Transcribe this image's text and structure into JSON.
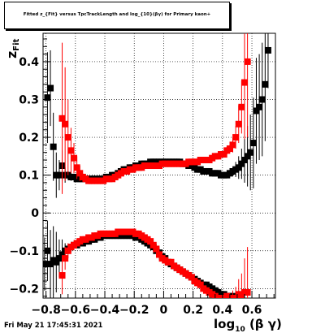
{
  "title": "Fitted z_{Fit} versus TpcTrackLength and log_{10}(βγ) for Primary kaon+",
  "footer": "Fri May 21 17:45:31 2021",
  "chart_data": {
    "type": "scatter",
    "title": "Fitted z_{Fit} versus TpcTrackLength and log_{10}(βγ) for Primary kaon+",
    "xlabel": "log10(βγ)",
    "ylabel": "z_Fit",
    "xlim": [
      -0.82,
      0.76
    ],
    "ylim": [
      -0.225,
      0.475
    ],
    "x_ticks": [
      -0.8,
      -0.6,
      -0.4,
      -0.2,
      0,
      0.2,
      0.4,
      0.6
    ],
    "y_ticks": [
      -0.2,
      -0.1,
      0,
      0.1,
      0.2,
      0.3,
      0.4
    ],
    "x_tick_labels": [
      "−0.8",
      "−0.6",
      "−0.4",
      "−0.2",
      "0",
      "0.2",
      "0.4",
      "0.6"
    ],
    "y_tick_labels": [
      "−0.2",
      "−0.1",
      "0",
      "0.1",
      "0.2",
      "0.3",
      "0.4"
    ],
    "grid": true,
    "series": [
      {
        "color": "#000000",
        "x": [
          -0.81,
          -0.79,
          -0.77,
          -0.75,
          -0.73,
          -0.71,
          -0.69,
          -0.67,
          -0.65,
          -0.63,
          -0.61,
          -0.59,
          -0.57,
          -0.55,
          -0.53,
          -0.51,
          -0.49,
          -0.47,
          -0.45,
          -0.43,
          -0.41,
          -0.39,
          -0.37,
          -0.35,
          -0.33,
          -0.31,
          -0.29,
          -0.27,
          -0.25,
          -0.23,
          -0.21,
          -0.19,
          -0.17,
          -0.15,
          -0.13,
          -0.11,
          -0.09,
          -0.07,
          -0.05,
          -0.03,
          -0.01,
          0.01,
          0.03,
          0.05,
          0.07,
          0.09,
          0.11,
          0.13,
          0.15,
          0.17,
          0.19,
          0.21,
          0.23,
          0.25,
          0.27,
          0.29,
          0.31,
          0.33,
          0.35,
          0.37,
          0.39,
          0.41,
          0.43,
          0.45,
          0.47,
          0.49,
          0.51,
          0.53,
          0.55,
          0.57,
          0.59,
          0.61,
          0.63,
          0.65,
          0.67,
          0.69,
          0.71,
          0.73
        ],
        "y": [
          null,
          0.305,
          0.33,
          0.175,
          0.1,
          0.1,
          0.125,
          0.1,
          0.1,
          0.095,
          0.095,
          0.09,
          0.09,
          0.09,
          0.09,
          0.09,
          0.09,
          0.09,
          0.09,
          0.09,
          0.09,
          0.095,
          0.095,
          0.1,
          0.1,
          0.105,
          0.11,
          0.115,
          0.115,
          0.12,
          0.12,
          0.125,
          0.125,
          0.13,
          0.13,
          0.13,
          0.135,
          0.135,
          0.135,
          0.135,
          0.135,
          0.135,
          0.135,
          0.135,
          0.135,
          0.135,
          0.135,
          0.13,
          0.13,
          0.125,
          0.125,
          0.12,
          0.115,
          0.115,
          0.11,
          0.11,
          0.11,
          0.105,
          0.105,
          0.105,
          0.1,
          0.1,
          0.1,
          0.105,
          0.11,
          0.115,
          0.12,
          0.13,
          0.14,
          0.15,
          0.16,
          0.185,
          0.27,
          0.28,
          0.3,
          0.34,
          0.43,
          null
        ],
        "yerr": [
          0,
          0.12,
          0.1,
          0.09,
          0.06,
          0.04,
          0.04,
          0.02,
          0.01,
          0.01,
          0.005,
          0.005,
          0.005,
          0.005,
          0.005,
          0.005,
          0.005,
          0.005,
          0.005,
          0.005,
          0.005,
          0.005,
          0.005,
          0.005,
          0.005,
          0.005,
          0.005,
          0.005,
          0.005,
          0.005,
          0.005,
          0.005,
          0.005,
          0.005,
          0.005,
          0.005,
          0.005,
          0.005,
          0.005,
          0.005,
          0.005,
          0.005,
          0.005,
          0.005,
          0.005,
          0.005,
          0.005,
          0.005,
          0.005,
          0.005,
          0.005,
          0.005,
          0.005,
          0.005,
          0.005,
          0.005,
          0.005,
          0.005,
          0.005,
          0.005,
          0.005,
          0.005,
          0.005,
          0.005,
          0.01,
          0.02,
          0.03,
          0.04,
          0.06,
          0.08,
          0.1,
          0.12,
          0.14,
          0.14,
          0.15,
          0.15,
          0.1,
          0
        ]
      },
      {
        "color": "#ff0000",
        "x": [
          -0.69,
          -0.67,
          -0.65,
          -0.63,
          -0.61,
          -0.59,
          -0.57,
          -0.55,
          -0.53,
          -0.51,
          -0.49,
          -0.47,
          -0.45,
          -0.43,
          -0.41,
          -0.39,
          -0.37,
          -0.35,
          -0.33,
          -0.31,
          -0.29,
          -0.27,
          -0.25,
          -0.23,
          -0.21,
          -0.19,
          -0.17,
          -0.15,
          -0.13,
          -0.11,
          -0.09,
          -0.07,
          -0.05,
          -0.03,
          -0.01,
          0.01,
          0.03,
          0.05,
          0.07,
          0.09,
          0.11,
          0.13,
          0.15,
          0.17,
          0.19,
          0.21,
          0.23,
          0.25,
          0.27,
          0.29,
          0.31,
          0.33,
          0.35,
          0.37,
          0.39,
          0.41,
          0.43,
          0.45,
          0.47,
          0.49,
          0.51,
          0.53,
          0.55,
          0.57
        ],
        "y": [
          0.25,
          0.235,
          0.2,
          0.165,
          0.145,
          0.12,
          0.105,
          0.095,
          0.09,
          0.085,
          0.085,
          0.085,
          0.085,
          0.085,
          0.085,
          0.09,
          0.09,
          0.09,
          0.095,
          0.1,
          0.105,
          0.11,
          0.11,
          0.115,
          0.115,
          0.12,
          0.12,
          0.12,
          0.125,
          0.125,
          0.125,
          0.125,
          0.125,
          0.125,
          0.13,
          0.13,
          0.13,
          0.13,
          0.13,
          0.13,
          0.13,
          0.13,
          0.13,
          0.135,
          0.135,
          0.135,
          0.135,
          0.14,
          0.14,
          0.14,
          0.14,
          0.145,
          0.15,
          0.15,
          0.155,
          0.155,
          0.165,
          0.17,
          0.18,
          0.2,
          0.235,
          0.28,
          0.345,
          0.4
        ],
        "yerr": [
          0.2,
          0.15,
          0.1,
          0.06,
          0.04,
          0.03,
          0.02,
          0.01,
          0.005,
          0.005,
          0.005,
          0.005,
          0.005,
          0.005,
          0.005,
          0.005,
          0.005,
          0.005,
          0.005,
          0.005,
          0.005,
          0.005,
          0.005,
          0.005,
          0.005,
          0.005,
          0.005,
          0.005,
          0.005,
          0.005,
          0.005,
          0.005,
          0.005,
          0.005,
          0.005,
          0.005,
          0.005,
          0.005,
          0.005,
          0.005,
          0.005,
          0.005,
          0.005,
          0.005,
          0.005,
          0.005,
          0.005,
          0.005,
          0.005,
          0.005,
          0.005,
          0.005,
          0.005,
          0.005,
          0.005,
          0.005,
          0.01,
          0.01,
          0.02,
          0.03,
          0.05,
          0.07,
          0.15,
          0.2
        ]
      },
      {
        "color": "#000000",
        "x": [
          -0.81,
          -0.79,
          -0.77,
          -0.75,
          -0.73,
          -0.71,
          -0.69,
          -0.67,
          -0.65,
          -0.63,
          -0.61,
          -0.59,
          -0.57,
          -0.55,
          -0.53,
          -0.51,
          -0.49,
          -0.47,
          -0.45,
          -0.43,
          -0.41,
          -0.39,
          -0.37,
          -0.35,
          -0.33,
          -0.31,
          -0.29,
          -0.27,
          -0.25,
          -0.23,
          -0.21,
          -0.19,
          -0.17,
          -0.15,
          -0.13,
          -0.11,
          -0.09,
          -0.07,
          -0.05,
          -0.03,
          -0.01,
          0.01,
          0.03,
          0.05,
          0.07,
          0.09,
          0.11,
          0.13,
          0.15,
          0.17,
          0.19,
          0.21,
          0.23,
          0.25,
          0.27,
          0.29,
          0.31,
          0.33,
          0.35,
          0.37,
          0.39,
          0.41,
          0.43,
          0.45,
          0.47
        ],
        "y": [
          -0.135,
          -0.1,
          -0.135,
          -0.125,
          -0.13,
          -0.12,
          -0.11,
          -0.1,
          -0.095,
          -0.09,
          -0.085,
          -0.085,
          -0.08,
          -0.08,
          -0.075,
          -0.075,
          -0.07,
          -0.07,
          -0.065,
          -0.065,
          -0.06,
          -0.06,
          -0.06,
          -0.06,
          -0.06,
          -0.06,
          -0.06,
          -0.06,
          -0.06,
          -0.06,
          -0.06,
          -0.065,
          -0.065,
          -0.07,
          -0.075,
          -0.08,
          -0.085,
          -0.09,
          -0.1,
          -0.105,
          -0.115,
          -0.12,
          -0.13,
          -0.135,
          -0.14,
          -0.145,
          -0.15,
          -0.155,
          -0.16,
          -0.165,
          -0.17,
          -0.175,
          -0.18,
          -0.185,
          -0.19,
          -0.19,
          -0.195,
          -0.2,
          -0.205,
          -0.21,
          -0.215,
          -0.215,
          -0.22,
          -0.22,
          -0.22
        ],
        "yerr": [
          0.07,
          0.08,
          0.09,
          0.09,
          0.08,
          0.05,
          0.04,
          0.02,
          0.01,
          0.005,
          0.005,
          0.005,
          0.005,
          0.005,
          0.005,
          0.005,
          0.005,
          0.005,
          0.005,
          0.005,
          0.005,
          0.005,
          0.005,
          0.005,
          0.005,
          0.005,
          0.005,
          0.005,
          0.005,
          0.005,
          0.005,
          0.005,
          0.005,
          0.005,
          0.005,
          0.005,
          0.005,
          0.005,
          0.005,
          0.005,
          0.005,
          0.005,
          0.005,
          0.005,
          0.005,
          0.005,
          0.005,
          0.005,
          0.005,
          0.005,
          0.005,
          0.005,
          0.005,
          0.005,
          0.005,
          0.005,
          0.005,
          0.005,
          0.005,
          0.005,
          0.005,
          0.005,
          0.005,
          0.005,
          0.01
        ]
      },
      {
        "color": "#ff0000",
        "x": [
          -0.69,
          -0.67,
          -0.65,
          -0.63,
          -0.61,
          -0.59,
          -0.57,
          -0.55,
          -0.53,
          -0.51,
          -0.49,
          -0.47,
          -0.45,
          -0.43,
          -0.41,
          -0.39,
          -0.37,
          -0.35,
          -0.33,
          -0.31,
          -0.29,
          -0.27,
          -0.25,
          -0.23,
          -0.21,
          -0.19,
          -0.17,
          -0.15,
          -0.13,
          -0.11,
          -0.09,
          -0.07,
          -0.05,
          -0.03,
          -0.01,
          0.01,
          0.03,
          0.05,
          0.07,
          0.09,
          0.11,
          0.13,
          0.15,
          0.17,
          0.19,
          0.21,
          0.23,
          0.25,
          0.27,
          0.29,
          0.31,
          0.33,
          0.35,
          0.37,
          0.39,
          0.41,
          0.43,
          0.45,
          0.47,
          0.49,
          0.51,
          0.53,
          0.55,
          0.57
        ],
        "y": [
          -0.165,
          -0.12,
          -0.1,
          -0.09,
          -0.085,
          -0.08,
          -0.075,
          -0.07,
          -0.07,
          -0.065,
          -0.065,
          -0.06,
          -0.06,
          -0.055,
          -0.055,
          -0.055,
          -0.055,
          -0.055,
          -0.055,
          -0.05,
          -0.05,
          -0.05,
          -0.05,
          -0.05,
          -0.05,
          -0.055,
          -0.055,
          -0.06,
          -0.065,
          -0.07,
          -0.075,
          -0.085,
          -0.095,
          -0.11,
          -0.12,
          -0.125,
          -0.13,
          -0.13,
          -0.14,
          -0.145,
          -0.15,
          -0.155,
          -0.16,
          -0.165,
          -0.17,
          -0.18,
          -0.185,
          -0.19,
          -0.2,
          -0.205,
          -0.21,
          -0.215,
          -0.22,
          -0.225,
          -0.225,
          -0.225,
          -0.22,
          -0.225,
          -0.225,
          -0.225,
          -0.215,
          -0.22,
          -0.21,
          -0.21
        ],
        "yerr": [
          0.05,
          0.03,
          0.02,
          0.01,
          0.01,
          0.005,
          0.005,
          0.005,
          0.005,
          0.005,
          0.005,
          0.005,
          0.005,
          0.005,
          0.005,
          0.005,
          0.005,
          0.005,
          0.005,
          0.005,
          0.005,
          0.005,
          0.005,
          0.005,
          0.005,
          0.005,
          0.005,
          0.005,
          0.005,
          0.005,
          0.005,
          0.005,
          0.005,
          0.005,
          0.005,
          0.005,
          0.005,
          0.005,
          0.005,
          0.005,
          0.005,
          0.005,
          0.005,
          0.005,
          0.005,
          0.005,
          0.005,
          0.005,
          0.005,
          0.005,
          0.005,
          0.005,
          0.005,
          0.005,
          0.005,
          0.005,
          0.005,
          0.01,
          0.02,
          0.03,
          0.04,
          0.06,
          0.09,
          0.12
        ]
      }
    ]
  }
}
